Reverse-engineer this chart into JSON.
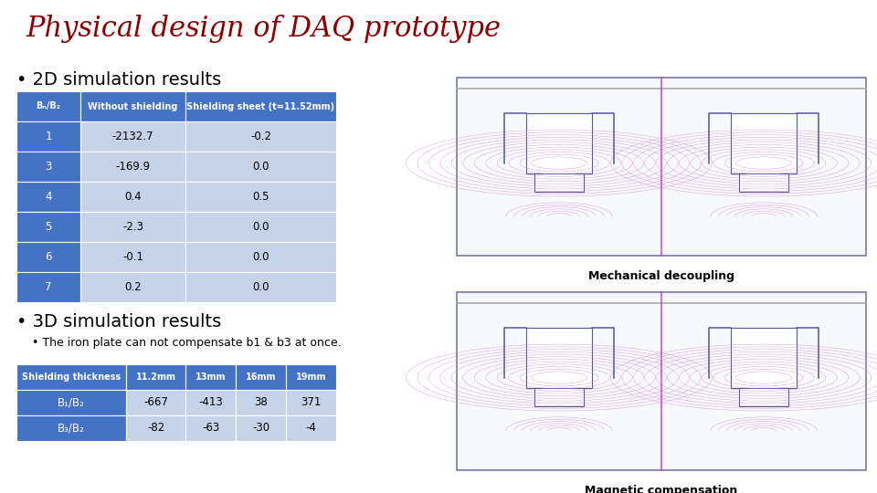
{
  "title": "Physical design of DAQ prototype",
  "title_color": "#8B0000",
  "bg_color": "#FFFFFF",
  "bullet1": "2D simulation results",
  "bullet2": "3D simulation results",
  "bullet2_sub": "The iron plate can not compensate b1 & b3 at once.",
  "table1_headers": [
    "Bₙ/B₂",
    "Without shielding",
    "Shielding sheet (t=11.52mm)"
  ],
  "table1_rows": [
    [
      "1",
      "-2132.7",
      "-0.2"
    ],
    [
      "3",
      "-169.9",
      "0.0"
    ],
    [
      "4",
      "0.4",
      "0.5"
    ],
    [
      "5",
      "-2.3",
      "0.0"
    ],
    [
      "6",
      "-0.1",
      "0.0"
    ],
    [
      "7",
      "0.2",
      "0.0"
    ]
  ],
  "table2_headers": [
    "Shielding thickness",
    "11.2mm",
    "13mm",
    "16mm",
    "19mm"
  ],
  "table2_rows": [
    [
      "B₁/B₂",
      "-667",
      "-413",
      "38",
      "371"
    ],
    [
      "B₃/B₂",
      "-82",
      "-63",
      "-30",
      "-4"
    ]
  ],
  "header_bg": "#4472C4",
  "header_fg": "#FFFFFF",
  "row_bg_dark": "#4472C4",
  "row_fg_dark": "#FFFFFF",
  "row_bg_light": "#C5D3E8",
  "row_fg_light": "#000000",
  "caption1": "Mechanical decoupling",
  "caption2": "Magnetic compensation",
  "sim_border_color": "#7777AA",
  "sim_line_color": "#CC88CC",
  "sim_center_color": "#CC44CC",
  "sim_struct_color": "#555599"
}
